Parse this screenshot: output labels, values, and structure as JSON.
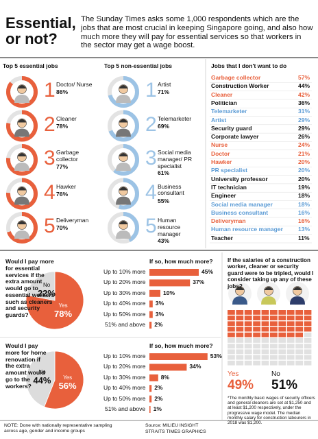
{
  "header": {
    "title": "Essential, or not?",
    "intro": "The Sunday Times asks some 1,000 respondents which are the jobs that are most crucial in keeping Singapore going, and also how much more they will pay for essential services so that workers in the sector may get a wage boost."
  },
  "essential": {
    "heading": "Top 5 essential jobs",
    "color": "#e8603c",
    "items": [
      {
        "rank": 1,
        "job": "Doctor/ Nurse",
        "value": 86,
        "value_label": "86%"
      },
      {
        "rank": 2,
        "job": "Cleaner",
        "value": 78,
        "value_label": "78%"
      },
      {
        "rank": 3,
        "job": "Garbage collector",
        "value": 77,
        "value_label": "77%"
      },
      {
        "rank": 4,
        "job": "Hawker",
        "value": 76,
        "value_label": "76%"
      },
      {
        "rank": 5,
        "job": "Deliveryman",
        "value": 70,
        "value_label": "70%"
      }
    ]
  },
  "nonessential": {
    "heading": "Top 5 non-essential jobs",
    "color": "#9cc3e5",
    "items": [
      {
        "rank": 1,
        "job": "Artist",
        "value": 71,
        "value_label": "71%"
      },
      {
        "rank": 2,
        "job": "Telemarketer",
        "value": 69,
        "value_label": "69%"
      },
      {
        "rank": 3,
        "job": "Social media manager/ PR specialist",
        "value": 61,
        "value_label": "61%"
      },
      {
        "rank": 4,
        "job": "Business consultant",
        "value": 55,
        "value_label": "55%"
      },
      {
        "rank": 5,
        "job": "Human resource manager",
        "value": 43,
        "value_label": "43%"
      }
    ]
  },
  "dont_want": {
    "heading": "Jobs that I don't want to do",
    "rows": [
      {
        "job": "Garbage collector",
        "value": 57,
        "value_label": "57%",
        "color": "#e8603c"
      },
      {
        "job": "Construction Worker",
        "value": 44,
        "value_label": "44%",
        "color": "#111111"
      },
      {
        "job": "Cleaner",
        "value": 42,
        "value_label": "42%",
        "color": "#e8603c"
      },
      {
        "job": "Politician",
        "value": 36,
        "value_label": "36%",
        "color": "#111111"
      },
      {
        "job": "Telemarketer",
        "value": 31,
        "value_label": "31%",
        "color": "#5b9bd5"
      },
      {
        "job": "Artist",
        "value": 29,
        "value_label": "29%",
        "color": "#5b9bd5"
      },
      {
        "job": "Security guard",
        "value": 29,
        "value_label": "29%",
        "color": "#111111"
      },
      {
        "job": "Corporate lawyer",
        "value": 26,
        "value_label": "26%",
        "color": "#111111"
      },
      {
        "job": "Nurse",
        "value": 24,
        "value_label": "24%",
        "color": "#e8603c"
      },
      {
        "job": "Doctor",
        "value": 21,
        "value_label": "21%",
        "color": "#e8603c"
      },
      {
        "job": "Hawker",
        "value": 20,
        "value_label": "20%",
        "color": "#e8603c"
      },
      {
        "job": "PR specialist",
        "value": 20,
        "value_label": "20%",
        "color": "#5b9bd5"
      },
      {
        "job": "University professor",
        "value": 20,
        "value_label": "20%",
        "color": "#111111"
      },
      {
        "job": "IT technician",
        "value": 19,
        "value_label": "19%",
        "color": "#111111"
      },
      {
        "job": "Engineer",
        "value": 18,
        "value_label": "18%",
        "color": "#111111"
      },
      {
        "job": "Social media manager",
        "value": 18,
        "value_label": "18%",
        "color": "#5b9bd5"
      },
      {
        "job": "Business consultant",
        "value": 16,
        "value_label": "16%",
        "color": "#5b9bd5"
      },
      {
        "job": "Deliveryman",
        "value": 16,
        "value_label": "16%",
        "color": "#e8603c"
      },
      {
        "job": "Human resource manager",
        "value": 13,
        "value_label": "13%",
        "color": "#5b9bd5"
      },
      {
        "job": "Teacher",
        "value": 11,
        "value_label": "11%",
        "color": "#111111"
      }
    ]
  },
  "pay_services": {
    "question": "Would I pay more for essential services if the extra amount would go to essential workers such as cleaners and security guards?",
    "pie": [
      {
        "label": "Yes",
        "value": 78,
        "value_label": "78%",
        "color": "#e8603c"
      },
      {
        "label": "No",
        "value": 22,
        "value_label": "22%",
        "color": "#dcdcdc"
      }
    ],
    "how_much": {
      "heading": "If so, how much more?",
      "color": "#e8603c",
      "bars": [
        {
          "label": "Up to 10% more",
          "value": 45,
          "value_label": "45%"
        },
        {
          "label": "Up to 20% more",
          "value": 37,
          "value_label": "37%"
        },
        {
          "label": "Up to 30% more",
          "value": 10,
          "value_label": "10%"
        },
        {
          "label": "Up to 40% more",
          "value": 3,
          "value_label": "3%"
        },
        {
          "label": "Up to 50% more",
          "value": 3,
          "value_label": "3%"
        },
        {
          "label": "51% and above",
          "value": 2,
          "value_label": "2%"
        }
      ]
    }
  },
  "renovation": {
    "question": "Would I pay more for home renovation if the extra amount would go to the workers?",
    "pie": [
      {
        "label": "Yes",
        "value": 56,
        "value_label": "56%",
        "color": "#e8603c"
      },
      {
        "label": "No",
        "value": 44,
        "value_label": "44%",
        "color": "#dcdcdc"
      }
    ],
    "how_much": {
      "heading": "If so, how much more?",
      "color": "#e8603c",
      "bars": [
        {
          "label": "Up to 10% more",
          "value": 53,
          "value_label": "53%"
        },
        {
          "label": "Up to 20% more",
          "value": 34,
          "value_label": "34%"
        },
        {
          "label": "Up to 30% more",
          "value": 8,
          "value_label": "8%"
        },
        {
          "label": "Up to 40% more",
          "value": 2,
          "value_label": "2%"
        },
        {
          "label": "Up to 50% more",
          "value": 2,
          "value_label": "2%"
        },
        {
          "label": "51% and above",
          "value": 1,
          "value_label": "1%"
        }
      ]
    }
  },
  "tripled": {
    "question": "If the salaries of a construction worker, cleaner or security guard were to be tripled, would I consider taking up any of these jobs?",
    "yes": {
      "label": "Yes",
      "value": 49,
      "value_label": "49%",
      "color": "#e8603c"
    },
    "no": {
      "label": "No",
      "value": 51,
      "value_label": "51%",
      "color": "#111111"
    },
    "note": "*The monthly basic wages of security officers and general cleaners are set at $1,250 and at least $1,200 respectively, under the progressive wage model. The median monthly salary for construction labourers in 2018 was $1,200."
  },
  "footer": {
    "note": "NOTE: Done with nationally representative sampling across age, gender and income groups",
    "source": "Source: MILIEU INSIGHT",
    "credit": "STRAITS TIMES GRAPHICS"
  }
}
